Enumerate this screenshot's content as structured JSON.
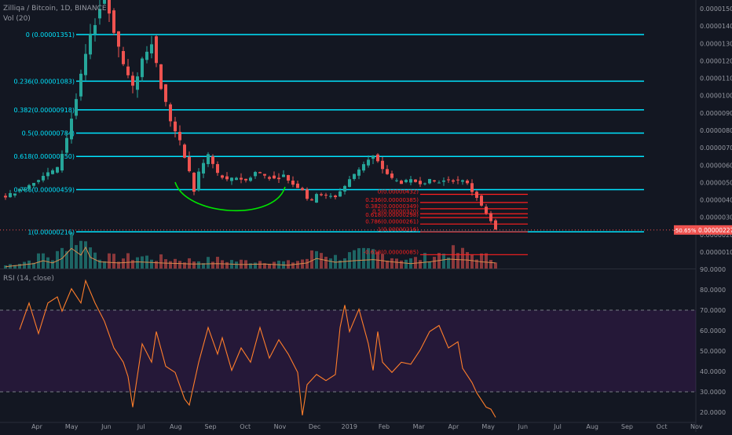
{
  "header": {
    "symbol": "Zilliqa / Bitcoin, 1D, BINANCE",
    "vol_label": "Vol (20)",
    "rsi_label": "RSI (14, close)"
  },
  "price_badge": {
    "pct": "-50.65%",
    "price": "0.00000227"
  },
  "chart_data": [
    {
      "type": "candlestick",
      "title": "Zilliqa / Bitcoin, 1D, BINANCE",
      "x_tick_labels": [
        "Apr",
        "May",
        "Jun",
        "Jul",
        "Aug",
        "Sep",
        "Oct",
        "Nov",
        "Dec",
        "2019",
        "Feb",
        "Mar",
        "Apr",
        "May",
        "Jun",
        "Jul",
        "Aug",
        "Sep",
        "Oct",
        "Nov"
      ],
      "y_tick_labels": [
        "0.00001500",
        "0.00001400",
        "0.00001300",
        "0.00001200",
        "0.00001100",
        "0.00001000",
        "0.00000900",
        "0.00000800",
        "0.00000700",
        "0.00000600",
        "0.00000500",
        "0.00000400",
        "0.00000300",
        "0.00000200",
        "0.00000100"
      ],
      "ylim": [
        5e-08,
        1.55e-05
      ],
      "close_path": [
        [
          0,
          4.2e-06
        ],
        [
          4,
          4.7e-06
        ],
        [
          8,
          5.4e-06
        ],
        [
          11,
          5.8e-06
        ],
        [
          13,
          7.6e-06
        ],
        [
          15,
          9.8e-06
        ],
        [
          17,
          1.23e-05
        ],
        [
          19,
          1.43e-05
        ],
        [
          21,
          1.58e-05
        ],
        [
          23,
          1.38e-05
        ],
        [
          25,
          1.18e-05
        ],
        [
          27,
          1.04e-05
        ],
        [
          29,
          1.21e-05
        ],
        [
          31,
          1.32e-05
        ],
        [
          33,
          1.05e-05
        ],
        [
          35,
          8.6e-06
        ],
        [
          37,
          7.3e-06
        ],
        [
          39,
          5.6e-06
        ],
        [
          40,
          4.5e-06
        ],
        [
          41,
          5.6e-06
        ],
        [
          43,
          6.6e-06
        ],
        [
          45,
          5.5e-06
        ],
        [
          47,
          5.1e-06
        ],
        [
          49,
          5.3e-06
        ],
        [
          51,
          5.1e-06
        ],
        [
          53,
          5.6e-06
        ],
        [
          55,
          5.4e-06
        ],
        [
          57,
          5.2e-06
        ],
        [
          59,
          5.4e-06
        ],
        [
          61,
          4.9e-06
        ],
        [
          63,
          4.6e-06
        ],
        [
          64,
          4.1e-06
        ],
        [
          65,
          3.9e-06
        ],
        [
          66,
          4.4e-06
        ],
        [
          68,
          4.2e-06
        ],
        [
          70,
          4.2e-06
        ],
        [
          72,
          4.8e-06
        ],
        [
          74,
          5.5e-06
        ],
        [
          76,
          6.1e-06
        ],
        [
          78,
          6.5e-06
        ],
        [
          80,
          5.8e-06
        ],
        [
          82,
          5.2e-06
        ],
        [
          84,
          5e-06
        ],
        [
          86,
          5.1e-06
        ],
        [
          88,
          5e-06
        ],
        [
          90,
          5.1e-06
        ],
        [
          92,
          5e-06
        ],
        [
          94,
          5.2e-06
        ],
        [
          96,
          5.1e-06
        ],
        [
          98,
          5e-06
        ],
        [
          99,
          4.5e-06
        ],
        [
          100,
          4.2e-06
        ],
        [
          101,
          3.6e-06
        ],
        [
          102,
          3.2e-06
        ],
        [
          103,
          2.8e-06
        ],
        [
          104,
          2.27e-06
        ]
      ],
      "volume_path": [
        [
          0,
          0.08
        ],
        [
          6,
          0.22
        ],
        [
          8,
          0.35
        ],
        [
          10,
          0.25
        ],
        [
          12,
          0.45
        ],
        [
          14,
          0.9
        ],
        [
          16,
          0.6
        ],
        [
          17,
          0.95
        ],
        [
          18,
          0.5
        ],
        [
          20,
          0.3
        ],
        [
          24,
          0.25
        ],
        [
          28,
          0.3
        ],
        [
          33,
          0.25
        ],
        [
          40,
          0.2
        ],
        [
          45,
          0.22
        ],
        [
          50,
          0.18
        ],
        [
          55,
          0.2
        ],
        [
          60,
          0.15
        ],
        [
          64,
          0.25
        ],
        [
          66,
          0.45
        ],
        [
          70,
          0.28
        ],
        [
          74,
          0.35
        ],
        [
          78,
          0.4
        ],
        [
          82,
          0.3
        ],
        [
          86,
          0.22
        ],
        [
          90,
          0.3
        ],
        [
          94,
          0.42
        ],
        [
          98,
          0.38
        ],
        [
          101,
          0.3
        ],
        [
          104,
          0.25
        ]
      ],
      "fib_levels_main": [
        {
          "label": "0 (0.00001351)",
          "value": 1.351e-05
        },
        {
          "label": "0.236(0.00001083)",
          "value": 1.083e-05
        },
        {
          "label": "0.382(0.00000918)",
          "value": 9.18e-06
        },
        {
          "label": "0.5(0.00000784)",
          "value": 7.84e-06
        },
        {
          "label": "0.618(0.00000650)",
          "value": 6.5e-06
        },
        {
          "label": "0.786(0.00000459)",
          "value": 4.59e-06
        },
        {
          "label": "1(0.00000216)",
          "value": 2.16e-06
        }
      ],
      "fib_levels_secondary": [
        {
          "label": "0(0.00000432)",
          "value": 4.32e-06
        },
        {
          "label": "0.236(0.00000385)",
          "value": 3.85e-06
        },
        {
          "label": "0.382(0.00000349)",
          "value": 3.49e-06
        },
        {
          "label": "0.5(0.00000320)",
          "value": 3.2e-06
        },
        {
          "label": "0.618(0.00000298)",
          "value": 2.98e-06
        },
        {
          "label": "0.786(0.00000261)",
          "value": 2.61e-06
        },
        {
          "label": "1(0.00000216)",
          "value": 2.16e-06
        },
        {
          "label": "-0.618(0.00000085)",
          "value": 8.5e-07
        }
      ],
      "annotation_curve": {
        "x_start": 41,
        "x_end": 58,
        "value_top": 4.75e-06,
        "value_bottom": 3.25e-06
      },
      "last_price": 2.27e-06,
      "last_change": "-50.65%",
      "colors": {
        "up": "#26a69a",
        "down": "#ef5350",
        "fib_main": "#00e5ff",
        "fib_secondary": "#ff1f1f",
        "annotation": "#00e600",
        "vol_ma": "#d88a4c"
      }
    },
    {
      "type": "line",
      "title": "RSI (14, close)",
      "y_tick_labels": [
        "90.0000",
        "80.0000",
        "70.0000",
        "60.0000",
        "50.0000",
        "40.0000",
        "30.0000",
        "20.0000"
      ],
      "ylim": [
        15,
        90
      ],
      "overbought": 70,
      "oversold": 30,
      "rsi_path": [
        [
          3,
          62
        ],
        [
          5,
          72
        ],
        [
          7,
          60
        ],
        [
          9,
          72
        ],
        [
          11,
          78
        ],
        [
          12,
          68
        ],
        [
          14,
          82
        ],
        [
          16,
          72
        ],
        [
          17,
          86
        ],
        [
          19,
          72
        ],
        [
          21,
          66
        ],
        [
          23,
          50
        ],
        [
          25,
          46
        ],
        [
          26,
          36
        ],
        [
          27,
          24
        ],
        [
          29,
          52
        ],
        [
          31,
          46
        ],
        [
          32,
          58
        ],
        [
          34,
          44
        ],
        [
          36,
          38
        ],
        [
          38,
          28
        ],
        [
          39,
          22
        ],
        [
          41,
          46
        ],
        [
          43,
          60
        ],
        [
          45,
          50
        ],
        [
          46,
          55
        ],
        [
          48,
          42
        ],
        [
          50,
          50
        ],
        [
          52,
          46
        ],
        [
          54,
          60
        ],
        [
          56,
          48
        ],
        [
          58,
          54
        ],
        [
          60,
          50
        ],
        [
          62,
          38
        ],
        [
          63,
          20
        ],
        [
          64,
          32
        ],
        [
          66,
          40
        ],
        [
          68,
          34
        ],
        [
          70,
          40
        ],
        [
          71,
          60
        ],
        [
          72,
          74
        ],
        [
          73,
          58
        ],
        [
          75,
          72
        ],
        [
          77,
          52
        ],
        [
          78,
          42
        ],
        [
          79,
          58
        ],
        [
          80,
          46
        ],
        [
          82,
          38
        ],
        [
          84,
          46
        ],
        [
          86,
          42
        ],
        [
          88,
          52
        ],
        [
          90,
          58
        ],
        [
          92,
          64
        ],
        [
          94,
          50
        ],
        [
          96,
          56
        ],
        [
          97,
          40
        ],
        [
          99,
          36
        ],
        [
          100,
          28
        ],
        [
          102,
          24
        ],
        [
          103,
          20
        ],
        [
          104,
          19
        ]
      ],
      "line_color": "#ff7e2b",
      "band_color": "#7b1fa2"
    }
  ]
}
